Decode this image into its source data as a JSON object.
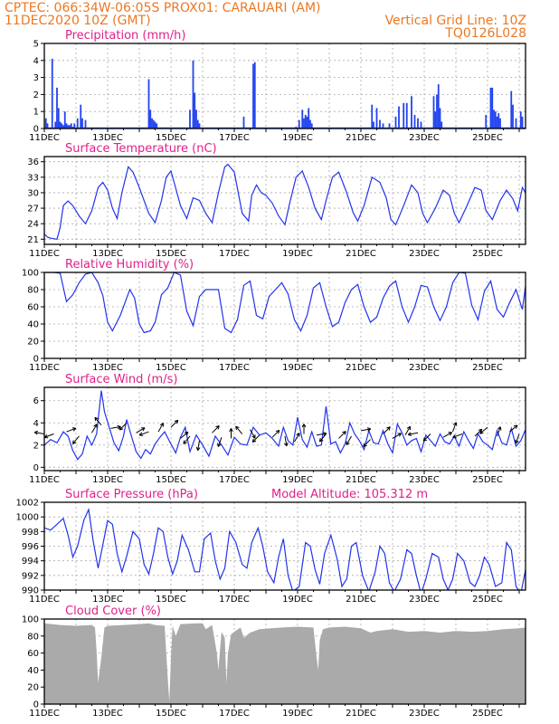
{
  "header": {
    "line1_left": "CPTEC:   066:34W-06:05S   PROX01: CARAUARI (AM)",
    "line2_left": "11DEC2020 10Z (GMT)",
    "line2_right": "Vertical Grid Line: 10Z",
    "line3_right": "TQ0126L028"
  },
  "colors": {
    "header_text": "#ee7722",
    "title_text": "#e0208a",
    "series_line": "#2233ee",
    "bars": "#2244ee",
    "cloud_fill": "#aaaaaa",
    "grid": "#aaaaaa"
  },
  "x_axis": {
    "unit": "day",
    "start_day": 11,
    "end_day": 26.2,
    "major_ticks": [
      11,
      13,
      15,
      17,
      19,
      21,
      23,
      25
    ],
    "major_labels": [
      "11DEC",
      "13DEC",
      "15DEC",
      "17DEC",
      "19DEC",
      "21DEC",
      "23DEC",
      "25DEC"
    ]
  },
  "chart_data": [
    {
      "type": "bar",
      "title": "Precipitation (mm/h)",
      "ylim": [
        0,
        5
      ],
      "yticks": [
        0,
        1,
        2,
        3,
        4,
        5
      ],
      "grid": true,
      "x": [
        11.05,
        11.1,
        11.25,
        11.35,
        11.4,
        11.45,
        11.5,
        11.55,
        11.6,
        11.65,
        11.7,
        11.75,
        11.8,
        11.85,
        11.9,
        11.95,
        12.05,
        12.15,
        12.2,
        12.3,
        14.3,
        14.35,
        14.4,
        14.45,
        14.5,
        14.55,
        15.6,
        15.7,
        15.75,
        15.8,
        15.85,
        15.9,
        17.3,
        17.6,
        17.65,
        18.95,
        19.05,
        19.15,
        19.2,
        19.25,
        19.3,
        19.35,
        19.4,
        19.45,
        21.35,
        21.4,
        21.5,
        21.6,
        21.7,
        21.9,
        22.1,
        22.2,
        22.35,
        22.45,
        22.6,
        22.7,
        22.8,
        22.9,
        23.3,
        23.35,
        23.4,
        23.45,
        23.5,
        23.55,
        24.95,
        25.1,
        25.15,
        25.2,
        25.25,
        25.3,
        25.35,
        25.4,
        25.75,
        25.8,
        25.9,
        26.05,
        26.1
      ],
      "values": [
        0.6,
        0.3,
        4.1,
        0.4,
        2.4,
        1.2,
        0.4,
        0.3,
        0.2,
        1.0,
        0.3,
        0.2,
        0.2,
        0.3,
        0.1,
        0.3,
        0.6,
        1.4,
        0.6,
        0.5,
        2.9,
        1.1,
        0.6,
        0.5,
        0.4,
        0.3,
        1.1,
        4.0,
        2.1,
        1.1,
        0.5,
        0.3,
        0.7,
        3.8,
        3.9,
        0.1,
        0.5,
        1.1,
        0.6,
        0.8,
        0.7,
        1.2,
        0.5,
        0.3,
        1.4,
        0.4,
        1.2,
        0.5,
        0.3,
        0.3,
        0.7,
        1.3,
        1.5,
        1.5,
        1.9,
        0.8,
        0.6,
        0.4,
        1.9,
        1.0,
        2.0,
        2.6,
        1.2,
        0.4,
        0.8,
        2.4,
        2.4,
        1.1,
        1.0,
        0.7,
        0.9,
        0.6,
        2.2,
        1.4,
        0.6,
        1.0,
        0.7
      ]
    },
    {
      "type": "line",
      "title": "Surface Temperature (nC)",
      "ylim": [
        20,
        37
      ],
      "yticks": [
        21,
        24,
        27,
        30,
        33,
        36
      ],
      "grid": true,
      "x": [
        11.0,
        11.1,
        11.2,
        11.4,
        11.5,
        11.6,
        11.75,
        11.9,
        12.1,
        12.3,
        12.5,
        12.7,
        12.85,
        13.0,
        13.15,
        13.3,
        13.45,
        13.65,
        13.8,
        14.0,
        14.3,
        14.5,
        14.7,
        14.85,
        15.0,
        15.1,
        15.3,
        15.5,
        15.7,
        15.9,
        16.1,
        16.3,
        16.5,
        16.7,
        16.8,
        17.0,
        17.25,
        17.45,
        17.55,
        17.7,
        17.85,
        18.0,
        18.2,
        18.4,
        18.6,
        18.75,
        18.95,
        19.15,
        19.35,
        19.55,
        19.75,
        19.9,
        20.1,
        20.3,
        20.55,
        20.75,
        20.9,
        21.1,
        21.35,
        21.6,
        21.8,
        21.95,
        22.1,
        22.35,
        22.6,
        22.8,
        22.95,
        23.1,
        23.35,
        23.6,
        23.8,
        23.95,
        24.1,
        24.35,
        24.6,
        24.8,
        24.95,
        25.15,
        25.4,
        25.6,
        25.8,
        25.95,
        26.1,
        26.2
      ],
      "values": [
        22.0,
        21.4,
        21.2,
        21.0,
        23.3,
        27.5,
        28.4,
        27.5,
        25.5,
        24.0,
        26.5,
        31.0,
        32.0,
        30.5,
        27.0,
        25.0,
        30.0,
        35.0,
        34.0,
        31.0,
        26.0,
        24.2,
        28.5,
        33.0,
        34.2,
        32.0,
        27.5,
        25.0,
        29.0,
        28.5,
        26.0,
        24.2,
        30.0,
        35.0,
        35.5,
        34.0,
        26.0,
        24.5,
        29.5,
        31.5,
        30.0,
        29.5,
        28.0,
        25.5,
        23.8,
        28.0,
        33.0,
        34.2,
        31.0,
        27.0,
        24.8,
        28.5,
        33.0,
        34.0,
        30.0,
        26.2,
        24.5,
        27.5,
        33.0,
        32.0,
        29.0,
        24.8,
        23.8,
        27.5,
        31.5,
        30.0,
        26.0,
        24.2,
        27.0,
        30.5,
        29.5,
        26.0,
        24.2,
        27.5,
        31.0,
        30.5,
        26.5,
        24.8,
        28.5,
        30.5,
        28.8,
        26.5,
        31.0,
        30.0
      ]
    },
    {
      "type": "line",
      "title": "Relative Humidity (%)",
      "ylim": [
        0,
        100
      ],
      "yticks": [
        0,
        20,
        40,
        60,
        80,
        100
      ],
      "grid": true,
      "x": [
        11.0,
        11.3,
        11.5,
        11.7,
        11.9,
        12.1,
        12.3,
        12.5,
        12.7,
        12.85,
        13.0,
        13.15,
        13.4,
        13.7,
        13.85,
        14.0,
        14.15,
        14.35,
        14.5,
        14.7,
        14.9,
        15.1,
        15.3,
        15.5,
        15.7,
        15.9,
        16.1,
        16.3,
        16.5,
        16.7,
        16.9,
        17.1,
        17.3,
        17.5,
        17.7,
        17.9,
        18.1,
        18.3,
        18.5,
        18.7,
        18.9,
        19.1,
        19.3,
        19.5,
        19.7,
        19.9,
        20.1,
        20.3,
        20.5,
        20.7,
        20.9,
        21.1,
        21.3,
        21.5,
        21.7,
        21.9,
        22.1,
        22.3,
        22.5,
        22.7,
        22.9,
        23.1,
        23.3,
        23.5,
        23.7,
        23.9,
        24.1,
        24.3,
        24.5,
        24.7,
        24.9,
        25.1,
        25.3,
        25.5,
        25.7,
        25.9,
        26.1,
        26.2
      ],
      "values": [
        100.0,
        100.0,
        99.0,
        66.0,
        74.0,
        88.0,
        98.0,
        100.0,
        88.0,
        73.0,
        42.0,
        32.0,
        50.0,
        80.0,
        70.0,
        40.0,
        30.0,
        32.0,
        42.0,
        74.0,
        82.0,
        100.0,
        97.0,
        55.0,
        38.0,
        72.0,
        80.0,
        80.0,
        80.0,
        35.0,
        30.0,
        45.0,
        85.0,
        90.0,
        50.0,
        46.0,
        72.0,
        80.0,
        88.0,
        75.0,
        45.0,
        32.0,
        50.0,
        82.0,
        88.0,
        60.0,
        37.0,
        42.0,
        65.0,
        80.0,
        86.0,
        60.0,
        42.0,
        48.0,
        70.0,
        84.0,
        90.0,
        60.0,
        42.0,
        60.0,
        85.0,
        83.0,
        60.0,
        44.0,
        60.0,
        88.0,
        100.0,
        99.0,
        62.0,
        45.0,
        78.0,
        90.0,
        57.0,
        48.0,
        65.0,
        80.0,
        57.0,
        84.0
      ]
    },
    {
      "type": "line",
      "title": "Surface Wind (m/s)",
      "ylim": [
        -0.3,
        7.2
      ],
      "yticks": [
        0,
        2,
        4,
        6
      ],
      "grid": true,
      "x": [
        11.0,
        11.2,
        11.4,
        11.6,
        11.75,
        11.9,
        12.05,
        12.2,
        12.35,
        12.5,
        12.65,
        12.8,
        12.9,
        13.05,
        13.2,
        13.35,
        13.5,
        13.6,
        13.75,
        13.9,
        14.05,
        14.2,
        14.35,
        14.5,
        14.65,
        14.8,
        15.0,
        15.15,
        15.3,
        15.45,
        15.6,
        15.8,
        16.0,
        16.2,
        16.4,
        16.6,
        16.8,
        17.0,
        17.2,
        17.4,
        17.6,
        17.8,
        18.0,
        18.2,
        18.4,
        18.55,
        18.7,
        18.85,
        19.0,
        19.15,
        19.3,
        19.45,
        19.6,
        19.75,
        19.9,
        20.05,
        20.2,
        20.35,
        20.5,
        20.65,
        20.8,
        20.95,
        21.1,
        21.25,
        21.4,
        21.55,
        21.7,
        21.85,
        22.0,
        22.15,
        22.3,
        22.45,
        22.6,
        22.75,
        22.9,
        23.05,
        23.2,
        23.35,
        23.5,
        23.65,
        23.8,
        23.95,
        24.1,
        24.25,
        24.4,
        24.55,
        24.7,
        24.85,
        25.0,
        25.15,
        25.3,
        25.45,
        25.6,
        25.75,
        25.9,
        26.05,
        26.2
      ],
      "values": [
        2.0,
        2.5,
        2.2,
        3.2,
        2.8,
        1.5,
        0.7,
        1.2,
        2.8,
        2.0,
        3.0,
        6.9,
        5.0,
        3.6,
        2.2,
        1.5,
        2.8,
        4.3,
        2.8,
        1.4,
        0.8,
        1.6,
        1.2,
        2.1,
        2.7,
        3.2,
        2.1,
        1.3,
        2.7,
        3.6,
        1.4,
        2.9,
        2.0,
        1.0,
        2.8,
        2.0,
        1.1,
        2.7,
        2.1,
        2.0,
        3.6,
        2.9,
        3.1,
        2.6,
        1.9,
        3.6,
        2.4,
        2.0,
        4.5,
        2.5,
        1.8,
        3.2,
        1.9,
        2.0,
        5.5,
        2.1,
        2.3,
        1.3,
        2.1,
        4.0,
        3.0,
        2.4,
        1.6,
        3.3,
        2.2,
        2.1,
        3.3,
        2.1,
        1.3,
        3.9,
        3.1,
        2.0,
        2.4,
        2.6,
        1.4,
        2.9,
        2.4,
        1.9,
        3.0,
        2.3,
        2.1,
        2.8,
        1.9,
        3.2,
        2.4,
        1.7,
        3.0,
        2.3,
        2.0,
        1.6,
        3.3,
        2.2,
        2.0,
        3.5,
        1.9,
        2.4,
        3.4
      ],
      "arrows": {
        "x": [
          11.0,
          11.3,
          11.7,
          12.1,
          12.5,
          12.8,
          13.1,
          13.6,
          13.9,
          14.3,
          14.6,
          15.0,
          15.3,
          15.6,
          15.9,
          16.3,
          16.6,
          16.9,
          17.25,
          17.5,
          17.8,
          18.2,
          18.6,
          18.9,
          19.2,
          19.6,
          19.9,
          20.3,
          20.7,
          21.0,
          21.3,
          21.7,
          22.0,
          22.4,
          22.8,
          23.2,
          23.6,
          23.9,
          24.2,
          24.6,
          25.0,
          25.3,
          25.7,
          26.0
        ],
        "y": [
          3.0,
          3.0,
          3.2,
          2.8,
          3.1,
          3.8,
          3.5,
          4.0,
          3.1,
          3.2,
          3.2,
          3.6,
          2.6,
          2.8,
          2.4,
          3.1,
          2.7,
          2.6,
          3.0,
          3.4,
          2.9,
          2.7,
          2.8,
          2.3,
          3.0,
          2.9,
          3.0,
          2.6,
          2.8,
          3.3,
          2.5,
          3.0,
          2.6,
          2.9,
          3.1,
          3.0,
          2.7,
          3.2,
          3.0,
          2.8,
          3.6,
          2.8,
          3.2,
          3.0
        ],
        "dir_deg": [
          170,
          200,
          20,
          230,
          60,
          130,
          10,
          225,
          30,
          200,
          60,
          45,
          40,
          230,
          260,
          45,
          250,
          90,
          130,
          300,
          225,
          45,
          280,
          60,
          90,
          10,
          230,
          45,
          240,
          10,
          225,
          45,
          30,
          60,
          190,
          225,
          30,
          70,
          200,
          45,
          220,
          70,
          40,
          250
        ]
      }
    },
    {
      "type": "line",
      "title": "Surface Pressure (hPa)",
      "annotation": "Model Altitude: 105.312 m",
      "ylim": [
        990,
        1002
      ],
      "yticks": [
        990,
        992,
        994,
        996,
        998,
        1000,
        1002
      ],
      "grid": true,
      "x": [
        11.0,
        11.2,
        11.4,
        11.6,
        11.75,
        11.9,
        12.05,
        12.25,
        12.4,
        12.55,
        12.7,
        12.85,
        13.0,
        13.15,
        13.3,
        13.45,
        13.6,
        13.8,
        14.0,
        14.15,
        14.3,
        14.45,
        14.6,
        14.75,
        14.9,
        15.05,
        15.2,
        15.35,
        15.55,
        15.75,
        15.9,
        16.05,
        16.25,
        16.4,
        16.55,
        16.7,
        16.85,
        17.05,
        17.25,
        17.4,
        17.55,
        17.75,
        17.9,
        18.05,
        18.25,
        18.4,
        18.55,
        18.7,
        18.85,
        19.05,
        19.25,
        19.4,
        19.55,
        19.7,
        19.85,
        20.05,
        20.25,
        20.4,
        20.55,
        20.7,
        20.85,
        21.05,
        21.25,
        21.45,
        21.6,
        21.75,
        21.9,
        22.05,
        22.25,
        22.45,
        22.6,
        22.75,
        22.9,
        23.05,
        23.25,
        23.45,
        23.6,
        23.75,
        23.9,
        24.05,
        24.25,
        24.45,
        24.6,
        24.75,
        24.9,
        25.05,
        25.25,
        25.45,
        25.6,
        25.75,
        25.9,
        26.05,
        26.2
      ],
      "values": [
        998.5,
        998.2,
        999.0,
        999.8,
        997.5,
        994.5,
        996.0,
        999.6,
        1001.0,
        996.5,
        993.0,
        996.2,
        999.5,
        999.0,
        995.0,
        992.5,
        994.6,
        998.0,
        997.0,
        993.5,
        992.2,
        995.0,
        998.5,
        998.0,
        994.5,
        992.2,
        994.0,
        997.5,
        995.5,
        992.5,
        992.5,
        997.0,
        997.8,
        994.0,
        991.5,
        993.0,
        998.0,
        996.5,
        993.5,
        993.0,
        996.5,
        998.5,
        996.0,
        992.5,
        991.0,
        994.5,
        997.0,
        992.0,
        989.8,
        990.5,
        996.5,
        996.0,
        992.8,
        990.8,
        995.0,
        997.5,
        994.2,
        990.5,
        991.5,
        996.0,
        996.5,
        992.0,
        989.8,
        992.5,
        996.0,
        995.0,
        991.0,
        989.8,
        991.5,
        995.5,
        995.0,
        992.0,
        989.5,
        991.5,
        995.0,
        994.5,
        991.5,
        990.0,
        991.5,
        995.0,
        994.0,
        991.0,
        990.5,
        992.0,
        994.5,
        993.5,
        990.5,
        991.0,
        996.5,
        995.5,
        990.5,
        989.5,
        992.8
      ]
    },
    {
      "type": "area",
      "title": "Cloud Cover (%)",
      "ylim": [
        0,
        100
      ],
      "yticks": [
        0,
        20,
        40,
        60,
        80,
        100
      ],
      "grid": true,
      "x": [
        11.0,
        11.5,
        12.0,
        12.5,
        12.6,
        12.65,
        12.7,
        12.8,
        12.9,
        13.0,
        13.5,
        14.0,
        14.3,
        14.5,
        14.8,
        14.9,
        14.95,
        15.0,
        15.05,
        15.15,
        15.3,
        15.8,
        16.0,
        16.1,
        16.3,
        16.45,
        16.5,
        16.55,
        16.6,
        16.7,
        16.75,
        16.8,
        16.9,
        17.0,
        17.2,
        17.3,
        17.5,
        17.8,
        18.5,
        19.0,
        19.5,
        19.6,
        19.65,
        19.7,
        19.8,
        20.0,
        20.5,
        21.0,
        21.3,
        21.5,
        22.0,
        22.5,
        23.0,
        23.5,
        24.0,
        24.5,
        25.0,
        25.5,
        26.0,
        26.2
      ],
      "values": [
        95,
        93,
        92,
        93,
        90,
        62,
        25,
        55,
        90,
        92,
        93,
        94,
        95,
        93,
        92,
        30,
        3,
        55,
        92,
        80,
        94,
        95,
        95,
        88,
        93,
        60,
        40,
        65,
        85,
        78,
        25,
        60,
        82,
        85,
        90,
        78,
        84,
        88,
        90,
        91,
        90,
        55,
        40,
        75,
        88,
        90,
        91,
        89,
        84,
        86,
        88,
        85,
        86,
        84,
        86,
        85,
        86,
        88,
        89,
        90
      ]
    }
  ]
}
